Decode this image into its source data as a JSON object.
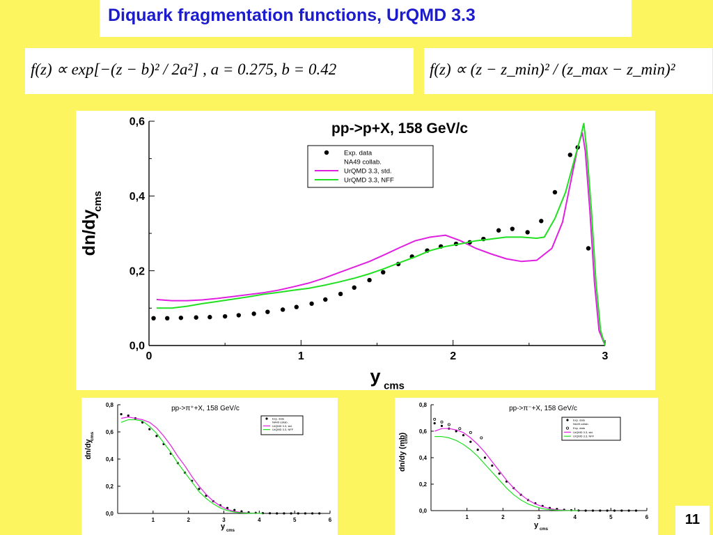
{
  "slide": {
    "title": "Diquark fragmentation functions, UrQMD 3.3",
    "formula_left": "f(z) ∝ exp[−(z − b)² / 2a²] ,     a = 0.275,    b = 0.42",
    "formula_right": "f(z) ∝ (z − z_min)² / (z_max − z_min)²",
    "page_number": "11"
  },
  "colors": {
    "background": "#fdf55f",
    "title": "#1c1ccc",
    "series_std": "#e020e0",
    "series_nff": "#20e020",
    "data_points": "#000000"
  },
  "chart_data": [
    {
      "id": "main",
      "type": "line",
      "title": "pp->p+X, 158 GeV/c",
      "xlabel": "y",
      "xlabel_sub": "cms",
      "ylabel": "dn/dy",
      "ylabel_sub": "cms",
      "xlim": [
        0,
        3
      ],
      "ylim": [
        0,
        0.6
      ],
      "xticks": [
        0,
        1,
        2,
        3
      ],
      "xtick_labels": [
        "0",
        "1",
        "2",
        "3"
      ],
      "yticks": [
        0,
        0.2,
        0.4,
        0.6
      ],
      "ytick_labels": [
        "0,0",
        "0,2",
        "0,4",
        "0,6"
      ],
      "legend_position": "top-center",
      "legend": [
        {
          "label": "Exp. data",
          "kind": "marker"
        },
        {
          "label": "NA49 collab.",
          "kind": "text"
        },
        {
          "label": "UrQMD 3.3, std.",
          "kind": "line",
          "series": "std"
        },
        {
          "label": "UrQMD 3.3, NFF",
          "kind": "line",
          "series": "nff"
        }
      ],
      "series": [
        {
          "key": "exp",
          "kind": "points",
          "x": [
            0.03,
            0.12,
            0.21,
            0.31,
            0.4,
            0.5,
            0.59,
            0.69,
            0.78,
            0.88,
            0.97,
            1.07,
            1.16,
            1.26,
            1.35,
            1.45,
            1.54,
            1.64,
            1.73,
            1.83,
            1.92,
            2.02,
            2.11,
            2.2,
            2.3,
            2.39,
            2.49,
            2.58,
            2.67,
            2.77,
            2.82,
            2.89
          ],
          "y": [
            0.073,
            0.073,
            0.074,
            0.075,
            0.076,
            0.078,
            0.081,
            0.085,
            0.09,
            0.096,
            0.103,
            0.112,
            0.123,
            0.138,
            0.155,
            0.175,
            0.196,
            0.218,
            0.238,
            0.254,
            0.265,
            0.272,
            0.276,
            0.285,
            0.308,
            0.312,
            0.303,
            0.333,
            0.41,
            0.51,
            0.53,
            0.26
          ]
        },
        {
          "key": "std",
          "kind": "line",
          "x": [
            0.05,
            0.15,
            0.25,
            0.35,
            0.45,
            0.55,
            0.65,
            0.75,
            0.85,
            0.95,
            1.05,
            1.15,
            1.25,
            1.35,
            1.45,
            1.55,
            1.65,
            1.75,
            1.85,
            1.95,
            2.05,
            2.15,
            2.25,
            2.35,
            2.45,
            2.55,
            2.65,
            2.72,
            2.78,
            2.82,
            2.85,
            2.87,
            2.9,
            2.93,
            2.96,
            3.0
          ],
          "y": [
            0.123,
            0.12,
            0.12,
            0.122,
            0.126,
            0.131,
            0.136,
            0.141,
            0.148,
            0.157,
            0.167,
            0.18,
            0.195,
            0.21,
            0.225,
            0.243,
            0.262,
            0.28,
            0.29,
            0.295,
            0.28,
            0.26,
            0.245,
            0.232,
            0.225,
            0.228,
            0.26,
            0.33,
            0.45,
            0.53,
            0.57,
            0.52,
            0.36,
            0.17,
            0.04,
            0.0
          ]
        },
        {
          "key": "nff",
          "kind": "line",
          "x": [
            0.05,
            0.15,
            0.25,
            0.35,
            0.45,
            0.55,
            0.65,
            0.75,
            0.85,
            0.95,
            1.05,
            1.15,
            1.25,
            1.35,
            1.45,
            1.55,
            1.65,
            1.75,
            1.85,
            1.95,
            2.05,
            2.15,
            2.25,
            2.35,
            2.45,
            2.55,
            2.6,
            2.67,
            2.74,
            2.8,
            2.84,
            2.86,
            2.88,
            2.91,
            2.94,
            2.97,
            3.0
          ],
          "y": [
            0.1,
            0.1,
            0.105,
            0.112,
            0.118,
            0.124,
            0.13,
            0.137,
            0.142,
            0.148,
            0.153,
            0.161,
            0.17,
            0.18,
            0.192,
            0.206,
            0.222,
            0.237,
            0.254,
            0.265,
            0.272,
            0.28,
            0.285,
            0.29,
            0.29,
            0.287,
            0.29,
            0.34,
            0.41,
            0.5,
            0.56,
            0.595,
            0.52,
            0.36,
            0.17,
            0.04,
            0.0
          ]
        }
      ]
    },
    {
      "id": "small-left",
      "type": "line",
      "title": "pp->π⁺+X, 158 GeV/c",
      "xlabel": "y",
      "xlabel_sub": "cms",
      "ylabel": "dn/dy",
      "ylabel_sub": "cms",
      "xlim": [
        0,
        6
      ],
      "ylim": [
        0,
        0.8
      ],
      "xticks": [
        1,
        2,
        3,
        4,
        5,
        6
      ],
      "xtick_labels": [
        "1",
        "2",
        "3",
        "4",
        "5",
        "6"
      ],
      "yticks": [
        0,
        0.2,
        0.4,
        0.6,
        0.8
      ],
      "ytick_labels": [
        "0,0",
        "0,2",
        "0,4",
        "0,6",
        "0,8"
      ],
      "legend_position": "top-right",
      "legend": [
        {
          "label": "Exp. data",
          "kind": "marker"
        },
        {
          "label": "NA49 collab.",
          "kind": "text"
        },
        {
          "label": "UrQMD 3.3, std.",
          "kind": "line",
          "series": "std"
        },
        {
          "label": "UrQMD 3.3, NFF",
          "kind": "line",
          "series": "nff"
        }
      ],
      "series": [
        {
          "key": "exp",
          "kind": "points",
          "x": [
            0.1,
            0.3,
            0.5,
            0.7,
            0.9,
            1.1,
            1.3,
            1.5,
            1.7,
            1.9,
            2.1,
            2.3,
            2.5,
            2.7,
            2.9,
            3.1,
            3.3,
            3.5,
            3.7,
            3.9,
            4.1,
            4.3,
            4.5,
            4.7,
            4.9,
            5.1,
            5.3,
            5.5,
            5.7
          ],
          "y": [
            0.73,
            0.72,
            0.7,
            0.67,
            0.62,
            0.57,
            0.51,
            0.44,
            0.37,
            0.3,
            0.24,
            0.18,
            0.13,
            0.09,
            0.06,
            0.04,
            0.025,
            0.015,
            0.008,
            0.004,
            0.002,
            0.001,
            0.0,
            0.0,
            0.0,
            0.0,
            0.0,
            0.0,
            0.0
          ]
        },
        {
          "key": "std",
          "kind": "line",
          "x": [
            0.1,
            0.3,
            0.5,
            0.7,
            0.9,
            1.1,
            1.3,
            1.5,
            1.7,
            1.9,
            2.1,
            2.3,
            2.5,
            2.7,
            2.9,
            3.1,
            3.3,
            3.5,
            3.7,
            3.9,
            4.1
          ],
          "y": [
            0.7,
            0.71,
            0.7,
            0.69,
            0.67,
            0.63,
            0.57,
            0.5,
            0.42,
            0.35,
            0.27,
            0.2,
            0.14,
            0.09,
            0.055,
            0.03,
            0.015,
            0.007,
            0.003,
            0.001,
            0.0
          ]
        },
        {
          "key": "nff",
          "kind": "line",
          "x": [
            0.1,
            0.3,
            0.5,
            0.7,
            0.9,
            1.1,
            1.3,
            1.5,
            1.7,
            1.9,
            2.1,
            2.3,
            2.5,
            2.7,
            2.9,
            3.1,
            3.3,
            3.5,
            3.7,
            3.9,
            4.1
          ],
          "y": [
            0.67,
            0.69,
            0.69,
            0.68,
            0.64,
            0.59,
            0.52,
            0.45,
            0.37,
            0.3,
            0.23,
            0.16,
            0.11,
            0.07,
            0.04,
            0.02,
            0.01,
            0.004,
            0.002,
            0.001,
            0.0
          ]
        }
      ]
    },
    {
      "id": "small-right",
      "type": "line",
      "title": "pp->π⁻+X, 158 GeV/c",
      "xlabel": "y",
      "xlabel_sub": "cms",
      "ylabel": "dn/dy (mb)",
      "ylabel_sub": "cms",
      "xlim": [
        0,
        6
      ],
      "ylim": [
        0,
        0.8
      ],
      "xticks": [
        1,
        2,
        3,
        4,
        5,
        6
      ],
      "xtick_labels": [
        "1",
        "2",
        "3",
        "4",
        "5",
        "6"
      ],
      "yticks": [
        0,
        0.2,
        0.4,
        0.6,
        0.8
      ],
      "ytick_labels": [
        "0,0",
        "0,2",
        "0,4",
        "0,6",
        "0,8"
      ],
      "legend_position": "top-right",
      "legend": [
        {
          "label": "Exp. data",
          "kind": "marker"
        },
        {
          "label": "NA49 collab.",
          "kind": "text"
        },
        {
          "label": "Exp. data",
          "kind": "open-marker"
        },
        {
          "label": "UrQMD 3.3, std.",
          "kind": "line",
          "series": "std"
        },
        {
          "label": "UrQMD 3.3, NFF",
          "kind": "line",
          "series": "nff"
        }
      ],
      "series": [
        {
          "key": "exp",
          "kind": "points",
          "x": [
            0.1,
            0.3,
            0.5,
            0.7,
            0.9,
            1.1,
            1.3,
            1.5,
            1.7,
            1.9,
            2.1,
            2.3,
            2.5,
            2.7,
            2.9,
            3.1,
            3.3,
            3.5,
            3.7,
            3.9,
            4.1,
            4.3,
            4.5,
            4.7,
            4.9,
            5.1,
            5.3,
            5.5,
            5.7
          ],
          "y": [
            0.66,
            0.64,
            0.62,
            0.6,
            0.57,
            0.52,
            0.46,
            0.4,
            0.34,
            0.28,
            0.22,
            0.17,
            0.12,
            0.08,
            0.055,
            0.035,
            0.02,
            0.012,
            0.006,
            0.003,
            0.001,
            0.0,
            0.0,
            0.0,
            0.0,
            0.0,
            0.0,
            0.0,
            0.0
          ]
        },
        {
          "key": "exp-open",
          "kind": "open-points",
          "x": [
            0.1,
            0.3,
            0.5,
            0.8,
            1.1,
            1.4
          ],
          "y": [
            0.69,
            0.67,
            0.65,
            0.62,
            0.59,
            0.55
          ]
        },
        {
          "key": "std",
          "kind": "line",
          "x": [
            0.1,
            0.3,
            0.5,
            0.7,
            0.9,
            1.1,
            1.3,
            1.5,
            1.7,
            1.9,
            2.1,
            2.3,
            2.5,
            2.7,
            2.9,
            3.1,
            3.3,
            3.5,
            3.7,
            3.9,
            4.1
          ],
          "y": [
            0.6,
            0.62,
            0.62,
            0.61,
            0.59,
            0.55,
            0.5,
            0.44,
            0.37,
            0.3,
            0.23,
            0.17,
            0.12,
            0.08,
            0.05,
            0.03,
            0.015,
            0.007,
            0.003,
            0.001,
            0.0
          ]
        },
        {
          "key": "nff",
          "kind": "line",
          "x": [
            0.1,
            0.3,
            0.5,
            0.7,
            0.9,
            1.1,
            1.3,
            1.5,
            1.7,
            1.9,
            2.1,
            2.3,
            2.5,
            2.7,
            2.9,
            3.1,
            3.3,
            3.5,
            3.7,
            3.9,
            4.1
          ],
          "y": [
            0.56,
            0.56,
            0.55,
            0.53,
            0.5,
            0.46,
            0.41,
            0.35,
            0.29,
            0.23,
            0.17,
            0.12,
            0.08,
            0.05,
            0.03,
            0.015,
            0.007,
            0.003,
            0.001,
            0.0,
            0.0
          ]
        }
      ]
    }
  ]
}
